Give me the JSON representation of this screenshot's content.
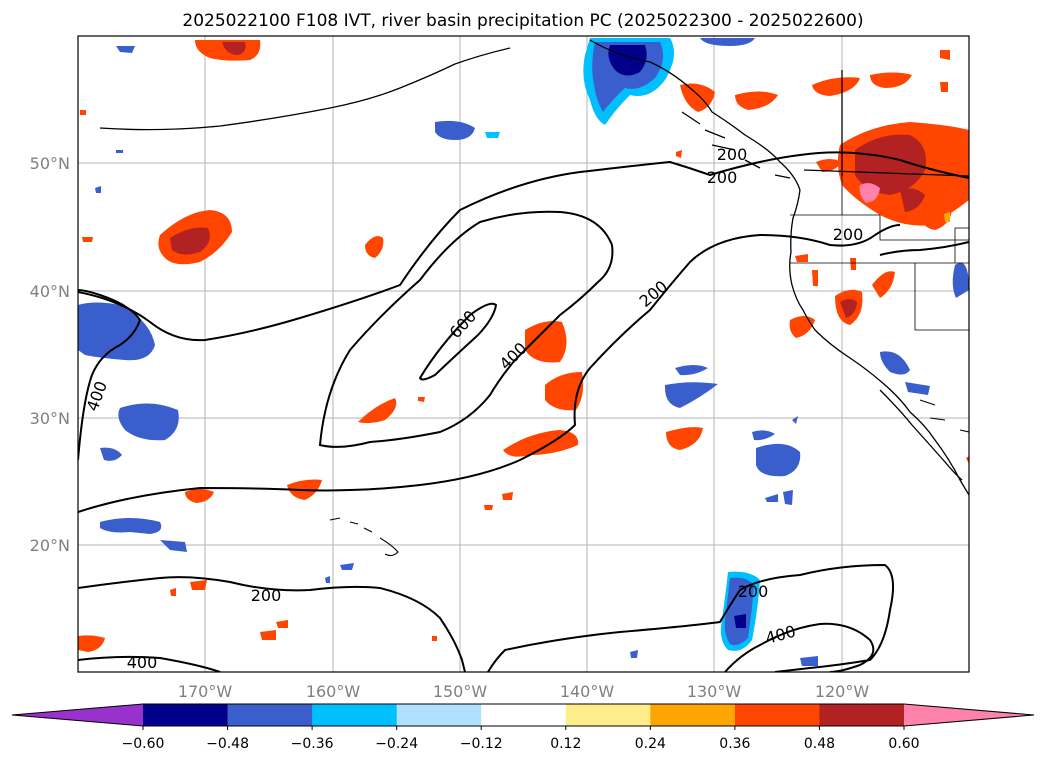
{
  "title": "2025022100 F108 IVT, river basin precipitation PC (2025022300 - 2025022600)",
  "map": {
    "lat_labels": [
      {
        "lat": 50,
        "label": "50°N"
      },
      {
        "lat": 40,
        "label": "40°N"
      },
      {
        "lat": 30,
        "label": "30°N"
      },
      {
        "lat": 20,
        "label": "20°N"
      }
    ],
    "lon_labels": [
      {
        "lon": -170,
        "label": "170°W"
      },
      {
        "lon": -160,
        "label": "160°W"
      },
      {
        "lon": -150,
        "label": "150°W"
      },
      {
        "lon": -140,
        "label": "140°W"
      },
      {
        "lon": -130,
        "label": "130°W"
      },
      {
        "lon": -120,
        "label": "120°W"
      }
    ],
    "grid": true,
    "contour_levels": [
      200,
      400,
      600
    ],
    "contour_labels": [
      "200",
      "200",
      "200",
      "200",
      "200",
      "200",
      "400",
      "400",
      "400",
      "400",
      "600"
    ]
  },
  "colorbar": {
    "ticks": [
      "−0.60",
      "−0.48",
      "−0.36",
      "−0.24",
      "−0.12",
      "0.12",
      "0.24",
      "0.36",
      "0.48",
      "0.60"
    ],
    "colors": [
      "#9932cc",
      "#00008b",
      "#3a5fcd",
      "#00bfff",
      "#b0e2ff",
      "#ffffff",
      "#ffec8b",
      "#ffa500",
      "#ff4500",
      "#b22222",
      "#ff82ab"
    ]
  }
}
